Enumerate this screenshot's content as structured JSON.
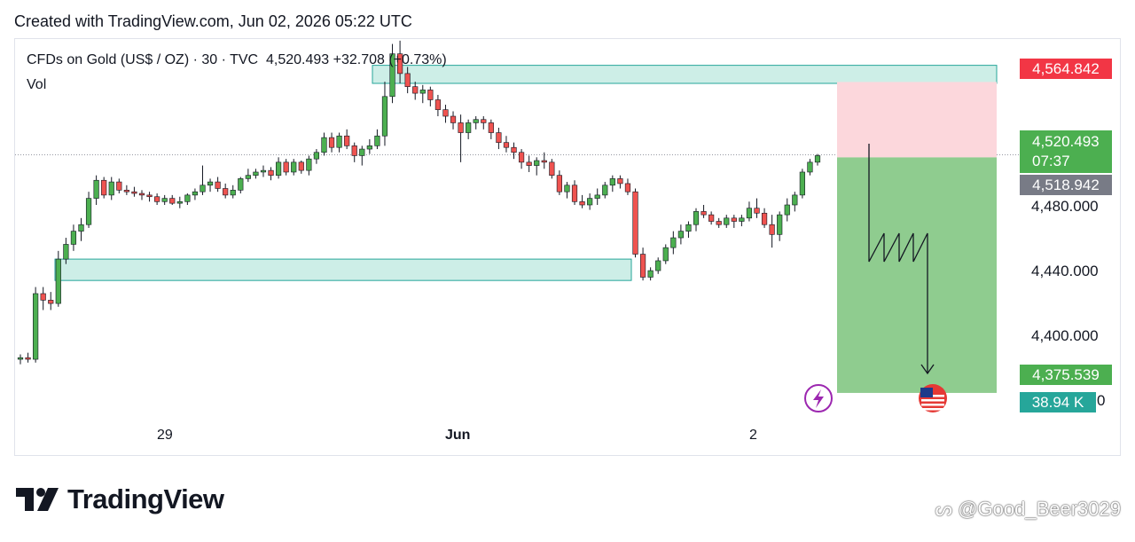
{
  "header": {
    "text": "Created with TradingView.com, Jun 02, 2026 05:22 UTC"
  },
  "legend": {
    "symbol": "CFDs on Gold (US$ / OZ) · 30 · TVC",
    "last": "4,520.493",
    "change": "+32.708 (+0.73%)",
    "vol_label": "Vol"
  },
  "price_tags": {
    "stop": "4,564.842",
    "current": "4,520.493",
    "countdown": "07:37",
    "entry": "4,518.942",
    "target": "4,375.539",
    "volume": "38.94 K",
    "volume_suffix": "0"
  },
  "colors": {
    "up": "#22ab94",
    "down": "#f23645",
    "candle_up": "#4caf50",
    "candle_down": "#ef5350",
    "zone": "#cdeee7",
    "zone_border": "#26a69a",
    "stop_zone": "#fcd7dc",
    "target_zone": "#8fcc8f"
  },
  "chart_data": {
    "type": "candlestick",
    "title": "CFDs on Gold (US$ / OZ) · 30 · TVC",
    "xlabel": "",
    "ylabel": "",
    "y_ticks": [
      "4,400.000",
      "4,440.000",
      "4,480.000"
    ],
    "y_ticks_values": [
      4400,
      4440,
      4480
    ],
    "x_ticks": [
      "29",
      "Jun",
      "2"
    ],
    "ylim": [
      4362,
      4591
    ],
    "last_price": 4520.493,
    "position": {
      "side": "short",
      "entry": 4518.942,
      "stop": 4564.842,
      "target": 4375.539
    },
    "supply_zone": [
      4564.0,
      4575.0
    ],
    "demand_zone": [
      4444.0,
      4457.0
    ],
    "candles": [
      [
        4396,
        4399,
        4393,
        4397
      ],
      [
        4397,
        4400,
        4394,
        4396
      ],
      [
        4396,
        4440,
        4394,
        4436
      ],
      [
        4436,
        4440,
        4426,
        4432
      ],
      [
        4432,
        4437,
        4426,
        4430
      ],
      [
        4430,
        4462,
        4428,
        4457
      ],
      [
        4457,
        4470,
        4454,
        4466
      ],
      [
        4466,
        4478,
        4462,
        4474
      ],
      [
        4474,
        4482,
        4468,
        4478
      ],
      [
        4478,
        4498,
        4476,
        4494
      ],
      [
        4494,
        4508,
        4490,
        4505
      ],
      [
        4505,
        4507,
        4494,
        4496
      ],
      [
        4496,
        4507,
        4493,
        4504
      ],
      [
        4504,
        4506,
        4497,
        4499
      ],
      [
        4499,
        4502,
        4496,
        4498
      ],
      [
        4498,
        4501,
        4495,
        4497
      ],
      [
        4497,
        4499,
        4493,
        4496
      ],
      [
        4496,
        4498,
        4492,
        4495
      ],
      [
        4495,
        4497,
        4490,
        4492
      ],
      [
        4492,
        4496,
        4490,
        4494
      ],
      [
        4494,
        4496,
        4490,
        4491
      ],
      [
        4491,
        4495,
        4488,
        4492
      ],
      [
        4492,
        4497,
        4490,
        4496
      ],
      [
        4496,
        4500,
        4493,
        4498
      ],
      [
        4498,
        4514,
        4496,
        4502
      ],
      [
        4502,
        4506,
        4498,
        4504
      ],
      [
        4504,
        4507,
        4498,
        4500
      ],
      [
        4500,
        4503,
        4494,
        4496
      ],
      [
        4496,
        4502,
        4494,
        4499
      ],
      [
        4499,
        4507,
        4497,
        4506
      ],
      [
        4506,
        4512,
        4504,
        4508
      ],
      [
        4508,
        4512,
        4506,
        4510
      ],
      [
        4510,
        4514,
        4507,
        4511
      ],
      [
        4511,
        4513,
        4505,
        4508
      ],
      [
        4508,
        4519,
        4506,
        4516
      ],
      [
        4516,
        4518,
        4508,
        4510
      ],
      [
        4510,
        4518,
        4508,
        4516
      ],
      [
        4516,
        4517,
        4509,
        4511
      ],
      [
        4511,
        4520,
        4508,
        4518
      ],
      [
        4518,
        4524,
        4515,
        4522
      ],
      [
        4522,
        4534,
        4520,
        4531
      ],
      [
        4531,
        4534,
        4522,
        4525
      ],
      [
        4525,
        4534,
        4522,
        4532
      ],
      [
        4532,
        4536,
        4524,
        4526
      ],
      [
        4526,
        4528,
        4516,
        4520
      ],
      [
        4520,
        4526,
        4514,
        4524
      ],
      [
        4524,
        4530,
        4521,
        4526
      ],
      [
        4526,
        4536,
        4524,
        4532
      ],
      [
        4532,
        4565,
        4526,
        4556
      ],
      [
        4556,
        4588,
        4552,
        4582
      ],
      [
        4582,
        4590,
        4564,
        4570
      ],
      [
        4570,
        4574,
        4558,
        4562
      ],
      [
        4562,
        4565,
        4554,
        4558
      ],
      [
        4558,
        4563,
        4552,
        4560
      ],
      [
        4560,
        4562,
        4550,
        4554
      ],
      [
        4554,
        4557,
        4544,
        4548
      ],
      [
        4548,
        4551,
        4540,
        4544
      ],
      [
        4544,
        4547,
        4536,
        4540
      ],
      [
        4540,
        4545,
        4516,
        4534
      ],
      [
        4534,
        4542,
        4530,
        4540
      ],
      [
        4540,
        4544,
        4536,
        4542
      ],
      [
        4542,
        4544,
        4536,
        4540
      ],
      [
        4540,
        4542,
        4530,
        4534
      ],
      [
        4534,
        4537,
        4524,
        4528
      ],
      [
        4528,
        4532,
        4522,
        4525
      ],
      [
        4525,
        4528,
        4518,
        4522
      ],
      [
        4522,
        4524,
        4512,
        4516
      ],
      [
        4516,
        4520,
        4510,
        4514
      ],
      [
        4514,
        4519,
        4508,
        4517
      ],
      [
        4517,
        4522,
        4512,
        4516
      ],
      [
        4516,
        4518,
        4506,
        4508
      ],
      [
        4508,
        4511,
        4496,
        4498
      ],
      [
        4498,
        4504,
        4494,
        4502
      ],
      [
        4502,
        4505,
        4490,
        4492
      ],
      [
        4492,
        4496,
        4488,
        4490
      ],
      [
        4490,
        4497,
        4487,
        4494
      ],
      [
        4494,
        4500,
        4490,
        4496
      ],
      [
        4496,
        4504,
        4494,
        4502
      ],
      [
        4502,
        4508,
        4498,
        4506
      ],
      [
        4506,
        4508,
        4500,
        4503
      ],
      [
        4503,
        4506,
        4496,
        4498
      ],
      [
        4498,
        4500,
        4458,
        4460
      ],
      [
        4460,
        4464,
        4444,
        4446
      ],
      [
        4446,
        4452,
        4444,
        4450
      ],
      [
        4450,
        4458,
        4448,
        4456
      ],
      [
        4456,
        4466,
        4454,
        4464
      ],
      [
        4464,
        4474,
        4460,
        4470
      ],
      [
        4470,
        4478,
        4466,
        4474
      ],
      [
        4474,
        4480,
        4470,
        4478
      ],
      [
        4478,
        4488,
        4474,
        4486
      ],
      [
        4486,
        4490,
        4482,
        4484
      ],
      [
        4484,
        4486,
        4478,
        4480
      ],
      [
        4480,
        4482,
        4476,
        4478
      ],
      [
        4478,
        4484,
        4476,
        4482
      ],
      [
        4482,
        4484,
        4476,
        4480
      ],
      [
        4480,
        4484,
        4477,
        4482
      ],
      [
        4482,
        4492,
        4480,
        4488
      ],
      [
        4488,
        4494,
        4482,
        4485
      ],
      [
        4485,
        4488,
        4476,
        4478
      ],
      [
        4478,
        4484,
        4464,
        4472
      ],
      [
        4472,
        4486,
        4468,
        4484
      ],
      [
        4484,
        4494,
        4480,
        4490
      ],
      [
        4490,
        4498,
        4486,
        4496
      ],
      [
        4496,
        4512,
        4494,
        4510
      ],
      [
        4510,
        4518,
        4508,
        4516
      ],
      [
        4516,
        4521,
        4514,
        4520
      ]
    ]
  }
}
